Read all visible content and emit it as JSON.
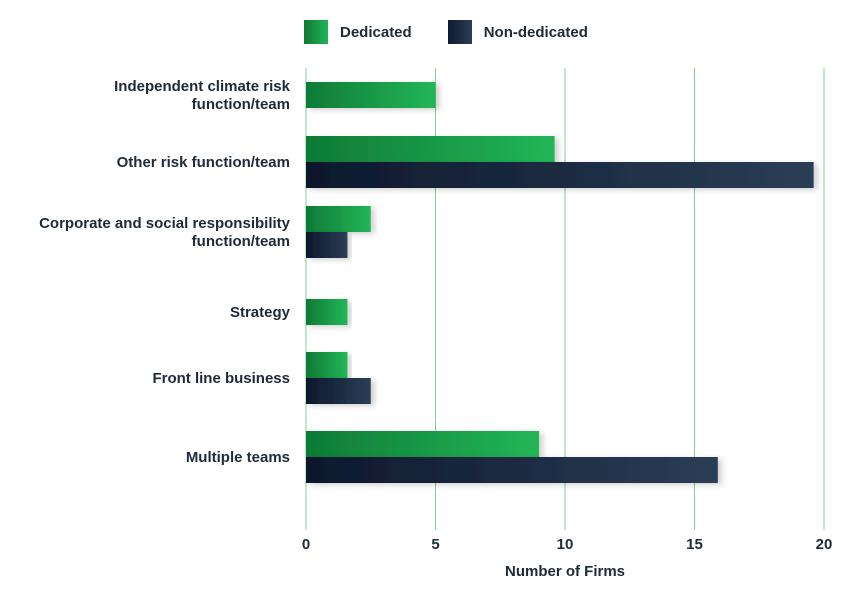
{
  "chart_data": {
    "type": "bar",
    "orientation": "horizontal",
    "categories": [
      "Independent climate risk function/team",
      "Other risk function/team",
      "Corporate and social responsibility function/team",
      "Strategy",
      "Front line business",
      "Multiple teams"
    ],
    "category_lines": [
      [
        "Independent climate risk",
        "function/team"
      ],
      [
        "Other risk function/team"
      ],
      [
        "Corporate and social responsibility",
        "function/team"
      ],
      [
        "Strategy"
      ],
      [
        "Front line business"
      ],
      [
        "Multiple teams"
      ]
    ],
    "series": [
      {
        "name": "Dedicated",
        "values": [
          5,
          9.6,
          2.5,
          1.6,
          1.6,
          9
        ],
        "color": "#1a9e4a"
      },
      {
        "name": "Non-dedicated",
        "values": [
          0,
          19.6,
          1.6,
          0,
          2.5,
          15.9
        ],
        "color": "#1b2a40"
      }
    ],
    "xlabel": "Number of Firms",
    "ylabel": "",
    "xlim": [
      0,
      20
    ],
    "xticks": [
      0,
      5,
      10,
      15,
      20
    ],
    "grid": "vertical",
    "gridline_color": "#7fcf98",
    "legend": "top"
  }
}
